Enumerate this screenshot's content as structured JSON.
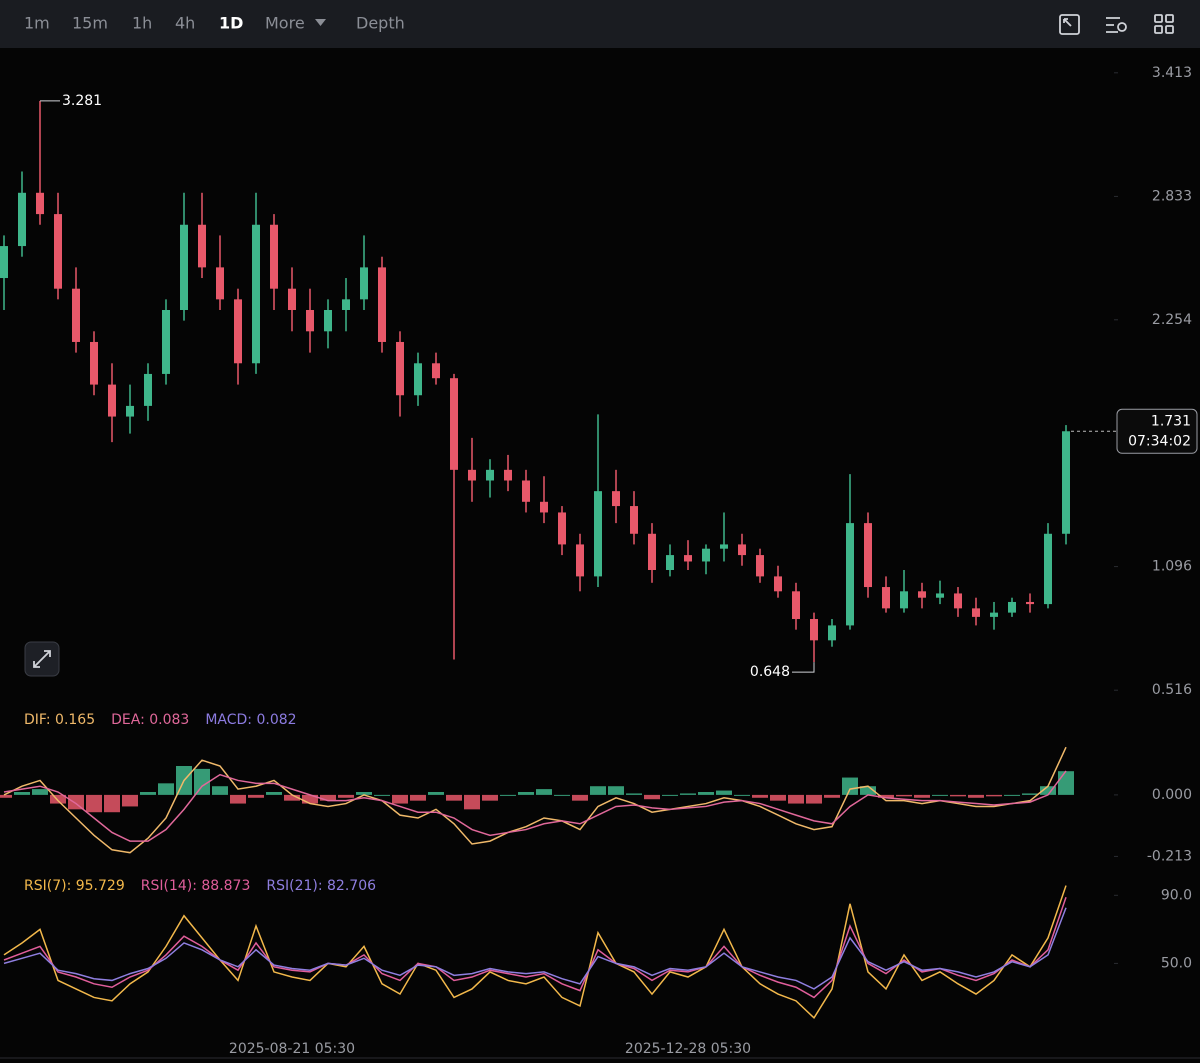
{
  "toolbar": {
    "tabs": [
      "1m",
      "15m",
      "1h",
      "4h",
      "1D",
      "More",
      "Depth"
    ],
    "active": "1D"
  },
  "chart_data": [
    {
      "type": "candlestick",
      "up_color": "#3fb68b",
      "down_color": "#e8586a",
      "ylim": [
        0.47,
        3.52
      ],
      "yticks": [
        3.413,
        2.833,
        2.254,
        1.096,
        0.516
      ],
      "high_label": 3.281,
      "low_label": 0.648,
      "last_price": 1.731,
      "countdown": "07:34:02",
      "ohlc": [
        [
          2.45,
          2.65,
          2.3,
          2.6
        ],
        [
          2.6,
          2.95,
          2.55,
          2.85
        ],
        [
          2.85,
          3.281,
          2.7,
          2.75
        ],
        [
          2.75,
          2.85,
          2.35,
          2.4
        ],
        [
          2.4,
          2.5,
          2.1,
          2.15
        ],
        [
          2.15,
          2.2,
          1.9,
          1.95
        ],
        [
          1.95,
          2.05,
          1.68,
          1.8
        ],
        [
          1.8,
          1.95,
          1.72,
          1.85
        ],
        [
          1.85,
          2.05,
          1.78,
          2.0
        ],
        [
          2.0,
          2.35,
          1.95,
          2.3
        ],
        [
          2.3,
          2.85,
          2.25,
          2.7
        ],
        [
          2.7,
          2.85,
          2.45,
          2.5
        ],
        [
          2.5,
          2.65,
          2.3,
          2.35
        ],
        [
          2.35,
          2.4,
          1.95,
          2.05
        ],
        [
          2.05,
          2.85,
          2.0,
          2.7
        ],
        [
          2.7,
          2.75,
          2.3,
          2.4
        ],
        [
          2.4,
          2.5,
          2.2,
          2.3
        ],
        [
          2.3,
          2.4,
          2.1,
          2.2
        ],
        [
          2.2,
          2.35,
          2.12,
          2.3
        ],
        [
          2.3,
          2.45,
          2.2,
          2.35
        ],
        [
          2.35,
          2.65,
          2.3,
          2.5
        ],
        [
          2.5,
          2.55,
          2.1,
          2.15
        ],
        [
          2.15,
          2.2,
          1.8,
          1.9
        ],
        [
          1.9,
          2.1,
          1.85,
          2.05
        ],
        [
          2.05,
          2.1,
          1.95,
          1.98
        ],
        [
          1.98,
          2.0,
          0.66,
          1.55
        ],
        [
          1.55,
          1.7,
          1.4,
          1.5
        ],
        [
          1.5,
          1.6,
          1.42,
          1.55
        ],
        [
          1.55,
          1.62,
          1.45,
          1.5
        ],
        [
          1.5,
          1.55,
          1.35,
          1.4
        ],
        [
          1.4,
          1.52,
          1.3,
          1.35
        ],
        [
          1.35,
          1.38,
          1.15,
          1.2
        ],
        [
          1.2,
          1.25,
          0.98,
          1.05
        ],
        [
          1.05,
          1.81,
          1.0,
          1.45
        ],
        [
          1.45,
          1.55,
          1.3,
          1.38
        ],
        [
          1.38,
          1.45,
          1.2,
          1.25
        ],
        [
          1.25,
          1.3,
          1.02,
          1.08
        ],
        [
          1.08,
          1.2,
          1.05,
          1.15
        ],
        [
          1.15,
          1.22,
          1.08,
          1.12
        ],
        [
          1.12,
          1.2,
          1.06,
          1.18
        ],
        [
          1.18,
          1.35,
          1.12,
          1.2
        ],
        [
          1.2,
          1.25,
          1.1,
          1.15
        ],
        [
          1.15,
          1.18,
          1.02,
          1.05
        ],
        [
          1.05,
          1.1,
          0.95,
          0.98
        ],
        [
          0.98,
          1.02,
          0.8,
          0.85
        ],
        [
          0.85,
          0.88,
          0.648,
          0.75
        ],
        [
          0.75,
          0.85,
          0.72,
          0.82
        ],
        [
          0.82,
          1.53,
          0.8,
          1.3
        ],
        [
          1.3,
          1.35,
          0.95,
          1.0
        ],
        [
          1.0,
          1.05,
          0.88,
          0.9
        ],
        [
          0.9,
          1.08,
          0.88,
          0.98
        ],
        [
          0.98,
          1.02,
          0.9,
          0.95
        ],
        [
          0.95,
          1.03,
          0.92,
          0.97
        ],
        [
          0.97,
          1.0,
          0.86,
          0.9
        ],
        [
          0.9,
          0.95,
          0.82,
          0.86
        ],
        [
          0.86,
          0.93,
          0.8,
          0.88
        ],
        [
          0.88,
          0.95,
          0.86,
          0.93
        ],
        [
          0.93,
          0.97,
          0.88,
          0.92
        ],
        [
          0.92,
          1.3,
          0.9,
          1.25
        ],
        [
          1.25,
          1.76,
          1.2,
          1.731
        ]
      ]
    },
    {
      "type": "line",
      "up_color": "#3fb68b",
      "down_color": "#e8586a",
      "ylim": [
        -0.26,
        0.19
      ],
      "yticks": [
        {
          "value": 0,
          "label": "0.000"
        },
        -0.213
      ],
      "series": [
        {
          "name": "DIF: 0.165",
          "color": "#f0b96a",
          "values": [
            0.0,
            0.03,
            0.05,
            -0.02,
            -0.08,
            -0.14,
            -0.19,
            -0.2,
            -0.15,
            -0.08,
            0.05,
            0.12,
            0.1,
            0.02,
            0.03,
            0.05,
            0.0,
            -0.03,
            -0.04,
            -0.03,
            0.0,
            -0.02,
            -0.07,
            -0.08,
            -0.05,
            -0.1,
            -0.17,
            -0.16,
            -0.13,
            -0.11,
            -0.08,
            -0.09,
            -0.12,
            -0.04,
            -0.01,
            -0.03,
            -0.06,
            -0.05,
            -0.04,
            -0.03,
            -0.01,
            -0.02,
            -0.04,
            -0.07,
            -0.1,
            -0.12,
            -0.11,
            0.02,
            0.03,
            -0.02,
            -0.02,
            -0.03,
            -0.02,
            -0.03,
            -0.04,
            -0.04,
            -0.03,
            -0.02,
            0.03,
            0.165
          ]
        },
        {
          "name": "DEA: 0.083",
          "color": "#e0689a",
          "values": [
            0.01,
            0.02,
            0.03,
            0.01,
            -0.03,
            -0.08,
            -0.13,
            -0.16,
            -0.16,
            -0.12,
            -0.05,
            0.03,
            0.07,
            0.05,
            0.04,
            0.04,
            0.02,
            0.0,
            -0.02,
            -0.02,
            -0.01,
            -0.02,
            -0.04,
            -0.06,
            -0.06,
            -0.08,
            -0.12,
            -0.14,
            -0.13,
            -0.12,
            -0.1,
            -0.09,
            -0.1,
            -0.07,
            -0.04,
            -0.035,
            -0.045,
            -0.05,
            -0.045,
            -0.04,
            -0.025,
            -0.02,
            -0.03,
            -0.05,
            -0.07,
            -0.09,
            -0.1,
            -0.04,
            0.0,
            -0.01,
            -0.015,
            -0.02,
            -0.02,
            -0.025,
            -0.03,
            -0.035,
            -0.03,
            -0.025,
            0.0,
            0.083
          ]
        },
        {
          "name": "MACD: 0.082",
          "color": "#8c7be0",
          "kind": "bar",
          "values": [
            -0.01,
            0.01,
            0.02,
            -0.03,
            -0.05,
            -0.06,
            -0.06,
            -0.04,
            0.01,
            0.04,
            0.1,
            0.09,
            0.03,
            -0.03,
            -0.01,
            0.01,
            -0.02,
            -0.03,
            -0.02,
            -0.01,
            0.01,
            0.0,
            -0.03,
            -0.02,
            0.01,
            -0.02,
            -0.05,
            -0.02,
            0.0,
            0.01,
            0.02,
            0.0,
            -0.02,
            0.03,
            0.03,
            0.005,
            -0.015,
            0.0,
            0.005,
            0.01,
            0.015,
            0.0,
            -0.01,
            -0.02,
            -0.03,
            -0.03,
            -0.01,
            0.06,
            0.03,
            -0.01,
            -0.005,
            -0.01,
            0.0,
            -0.005,
            -0.01,
            -0.005,
            0.0,
            0.005,
            0.03,
            0.082
          ]
        }
      ]
    },
    {
      "type": "line",
      "ylim": [
        5,
        99
      ],
      "yticks": [
        {
          "value": 90,
          "label": "90.0"
        },
        {
          "value": 50,
          "label": "50.0"
        }
      ],
      "categories": [
        null,
        null,
        null,
        null,
        null,
        null,
        null,
        null,
        null,
        null,
        null,
        null,
        null,
        null,
        null,
        null,
        "2025-08-21 05:30",
        null,
        null,
        null,
        null,
        null,
        null,
        null,
        null,
        null,
        null,
        null,
        null,
        null,
        null,
        null,
        null,
        null,
        null,
        null,
        null,
        null,
        "2025-12-28 05:30",
        null,
        null,
        null,
        null,
        null,
        null,
        null,
        null,
        null,
        null,
        null,
        null,
        null,
        null,
        null,
        null,
        null,
        null,
        null,
        null,
        null
      ],
      "series": [
        {
          "name": "RSI(7): 95.729",
          "color": "#f2b84b",
          "values": [
            55,
            62,
            70,
            40,
            35,
            30,
            28,
            38,
            45,
            60,
            78,
            65,
            52,
            40,
            72,
            45,
            42,
            40,
            50,
            48,
            60,
            38,
            32,
            50,
            46,
            30,
            35,
            45,
            40,
            38,
            42,
            30,
            25,
            68,
            50,
            45,
            32,
            45,
            42,
            48,
            70,
            48,
            38,
            32,
            28,
            18,
            35,
            85,
            45,
            35,
            55,
            40,
            45,
            38,
            32,
            40,
            55,
            48,
            65,
            95.729
          ]
        },
        {
          "name": "RSI(14): 88.873",
          "color": "#e05e9b",
          "values": [
            52,
            56,
            60,
            45,
            42,
            38,
            36,
            42,
            46,
            55,
            66,
            60,
            52,
            46,
            62,
            48,
            46,
            45,
            50,
            49,
            55,
            44,
            40,
            50,
            48,
            40,
            42,
            46,
            44,
            42,
            44,
            38,
            34,
            58,
            50,
            47,
            40,
            46,
            45,
            48,
            60,
            48,
            43,
            39,
            36,
            30,
            40,
            72,
            50,
            44,
            52,
            45,
            47,
            43,
            40,
            44,
            52,
            48,
            58,
            88.873
          ]
        },
        {
          "name": "RSI(21): 82.706",
          "color": "#8f7fe0",
          "values": [
            50,
            53,
            56,
            46,
            44,
            41,
            40,
            44,
            47,
            53,
            62,
            58,
            52,
            48,
            58,
            49,
            47,
            46,
            50,
            49,
            53,
            46,
            43,
            49,
            48,
            43,
            44,
            47,
            45,
            44,
            45,
            41,
            38,
            54,
            50,
            48,
            43,
            47,
            46,
            48,
            56,
            48,
            45,
            42,
            40,
            35,
            42,
            65,
            51,
            46,
            51,
            46,
            47,
            45,
            42,
            45,
            51,
            48,
            55,
            82.706
          ]
        }
      ]
    }
  ]
}
